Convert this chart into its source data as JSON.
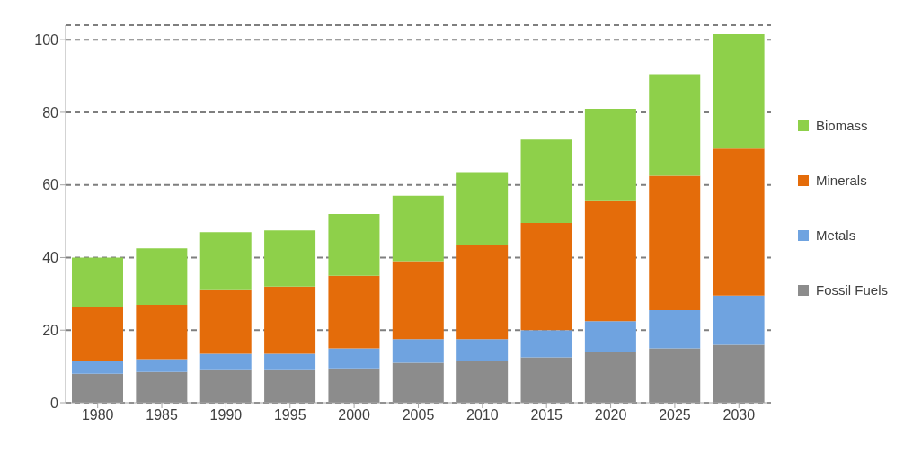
{
  "chart_data": {
    "type": "bar",
    "stacked": true,
    "categories": [
      "1980",
      "1985",
      "1990",
      "1995",
      "2000",
      "2005",
      "2010",
      "2015",
      "2020",
      "2025",
      "2030"
    ],
    "series": [
      {
        "name": "Fossil Fuels",
        "color": "#8c8c8c",
        "values": [
          8,
          8.5,
          9,
          9,
          9.5,
          11,
          11.5,
          12.5,
          14,
          15,
          16
        ]
      },
      {
        "name": "Metals",
        "color": "#6fa3e0",
        "values": [
          3.5,
          3.5,
          4.5,
          4.5,
          5.5,
          6.5,
          6,
          7.5,
          8.5,
          10.5,
          13.5
        ]
      },
      {
        "name": "Minerals",
        "color": "#e46c0a",
        "values": [
          15,
          15,
          17.5,
          18.5,
          20,
          21.5,
          26,
          29.5,
          33,
          37,
          40.5
        ]
      },
      {
        "name": "Biomass",
        "color": "#8ed04a",
        "values": [
          13.5,
          15.5,
          16,
          15.5,
          17,
          18,
          20,
          23,
          25.5,
          28,
          31.5
        ]
      }
    ],
    "ylim": [
      0,
      104
    ],
    "yticks": [
      0,
      20,
      40,
      60,
      80,
      100
    ],
    "grid": "y",
    "legend": "right"
  }
}
